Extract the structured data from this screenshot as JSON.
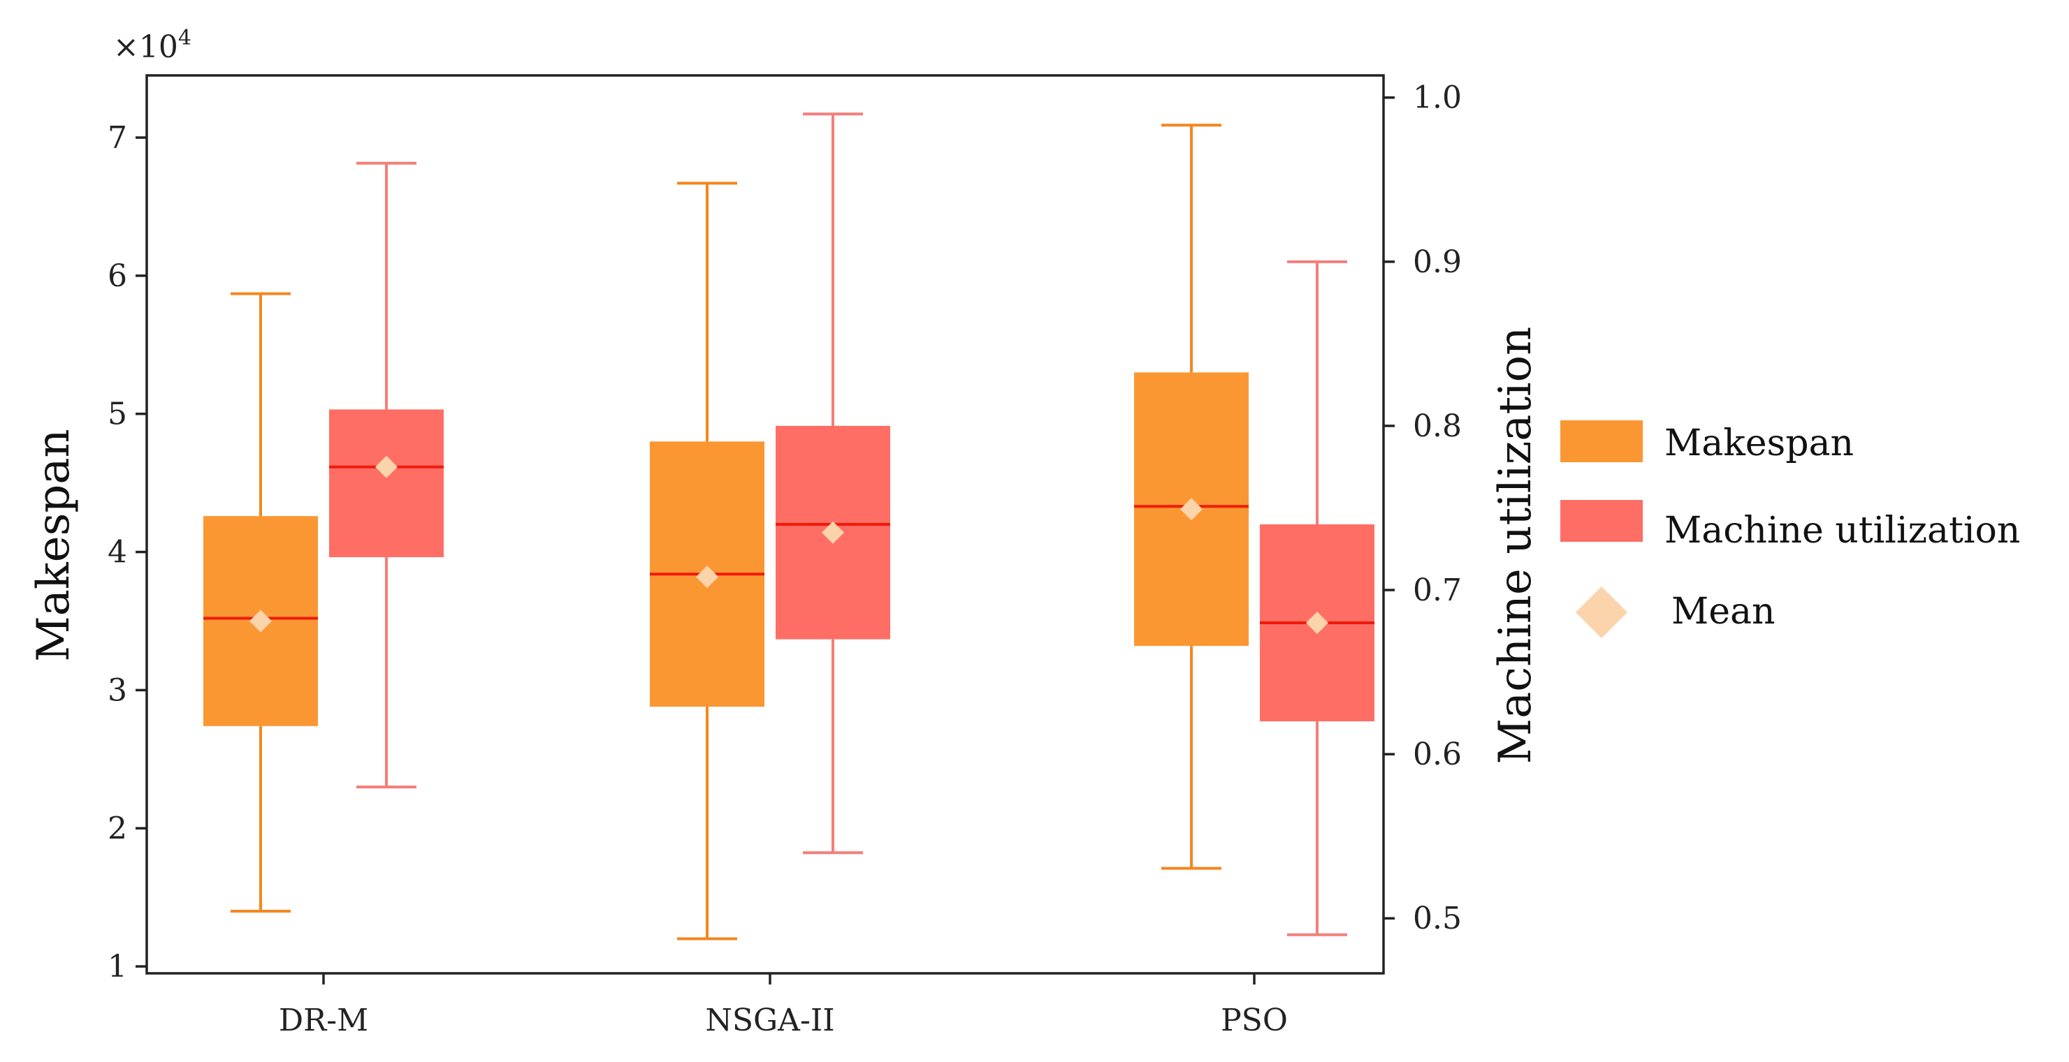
{
  "chart_data": {
    "type": "box",
    "categories": [
      "DR-M",
      "NSGA-II",
      "PSO"
    ],
    "x_labels": {
      "DR-M": "DR-M",
      "NSGA-II": "NSGA-II",
      "PSO": "PSO"
    },
    "left_axis": {
      "label": "Makespan",
      "multiplier_label": "×10",
      "multiplier_exponent": "4",
      "ylim": [
        0.95,
        7.45
      ],
      "ticks": [
        1,
        2,
        3,
        4,
        5,
        6,
        7
      ],
      "tick_labels": [
        "1",
        "2",
        "3",
        "4",
        "5",
        "6",
        "7"
      ]
    },
    "right_axis": {
      "label": "Machine utilization",
      "ylim": [
        0.4665,
        1.0135
      ],
      "ticks": [
        0.5,
        0.6,
        0.7,
        0.8,
        0.9,
        1.0
      ],
      "tick_labels": [
        "0.5",
        "0.6",
        "0.7",
        "0.8",
        "0.9",
        "1.0"
      ]
    },
    "series": [
      {
        "name": "Makespan",
        "axis": "left",
        "color": "#FB9733",
        "whisker_color": "#F5861F",
        "boxes": [
          {
            "category": "DR-M",
            "min": 1.4,
            "q1": 2.74,
            "median": 3.52,
            "q3": 4.26,
            "max": 5.87,
            "mean": 3.5
          },
          {
            "category": "NSGA-II",
            "min": 1.2,
            "q1": 2.88,
            "median": 3.84,
            "q3": 4.8,
            "max": 6.67,
            "mean": 3.82
          },
          {
            "category": "PSO",
            "min": 1.71,
            "q1": 3.32,
            "median": 4.33,
            "q3": 5.3,
            "max": 7.09,
            "mean": 4.31
          }
        ]
      },
      {
        "name": "Machine utilization",
        "axis": "right",
        "color": "#FE6E64",
        "whisker_color": "#F47E7A",
        "boxes": [
          {
            "category": "DR-M",
            "min": 0.58,
            "q1": 0.72,
            "median": 0.775,
            "q3": 0.81,
            "max": 0.96,
            "mean": 0.775
          },
          {
            "category": "NSGA-II",
            "min": 0.54,
            "q1": 0.67,
            "median": 0.74,
            "q3": 0.8,
            "max": 0.99,
            "mean": 0.735
          },
          {
            "category": "PSO",
            "min": 0.49,
            "q1": 0.62,
            "median": 0.68,
            "q3": 0.74,
            "max": 0.9,
            "mean": 0.68
          }
        ]
      }
    ],
    "median_color": "#F11A0A",
    "mean_marker": {
      "shape": "diamond",
      "color": "#FCD4AC"
    },
    "legend": {
      "position": "right",
      "entries": [
        "Makespan",
        "Machine utilization",
        "Mean"
      ]
    }
  }
}
